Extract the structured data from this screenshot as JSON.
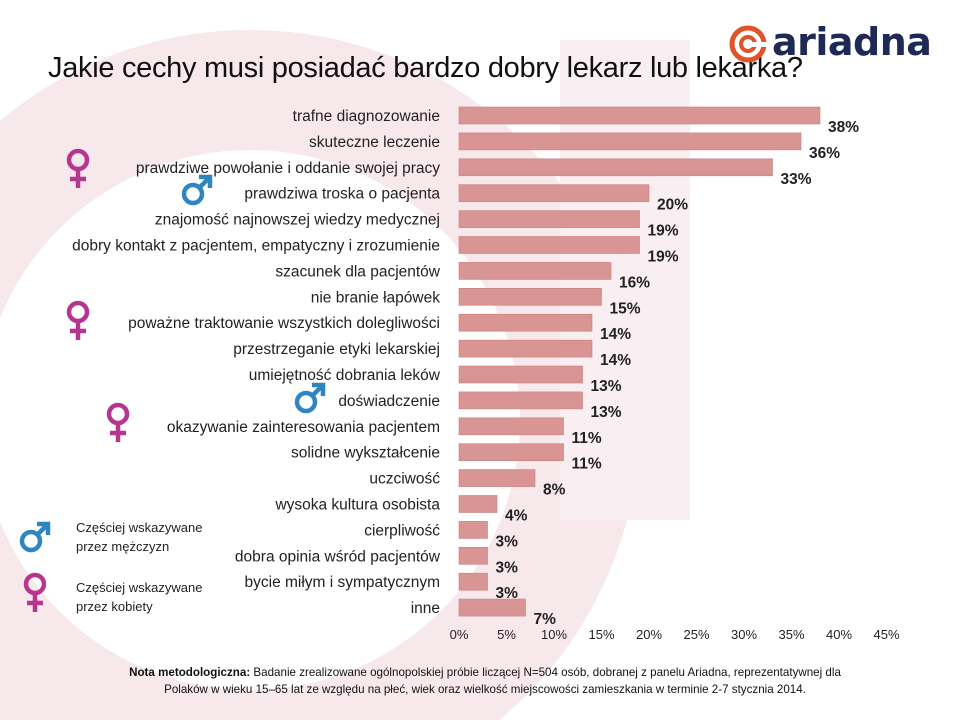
{
  "title": "Jakie cechy musi posiadać bardzo dobry lekarz lub lekarka?",
  "logo": {
    "text": "ariadna"
  },
  "colors": {
    "bar": "#d99594",
    "male_icon": "#2e86c1",
    "female_icon": "#b5358f",
    "background_deco": "#f6e9ec"
  },
  "chart_data": {
    "type": "bar",
    "orientation": "horizontal",
    "categories": [
      "trafne diagnozowanie",
      "skuteczne leczenie",
      "prawdziwe powołanie i oddanie swojej pracy",
      "prawdziwa troska o pacjenta",
      "znajomość najnowszej wiedzy medycznej",
      "dobry kontakt z pacjentem, empatyczny i zrozumienie",
      "szacunek dla pacjentów",
      "nie branie łapówek",
      "poważne traktowanie wszystkich dolegliwości",
      "przestrzeganie etyki lekarskiej",
      "umiejętność dobrania leków",
      "doświadczenie",
      "okazywanie zainteresowania pacjentem",
      "solidne wykształcenie",
      "uczciwość",
      "wysoka kultura osobista",
      "cierpliwość",
      "dobra opinia wśród pacjentów",
      "bycie miłym i sympatycznym",
      "inne"
    ],
    "values": [
      38,
      36,
      33,
      20,
      19,
      19,
      16,
      15,
      14,
      14,
      13,
      13,
      11,
      11,
      8,
      4,
      3,
      3,
      3,
      7
    ],
    "value_labels": [
      "38%",
      "36%",
      "33%",
      "20%",
      "19%",
      "19%",
      "16%",
      "15%",
      "14%",
      "14%",
      "13%",
      "13%",
      "11%",
      "11%",
      "8%",
      "4%",
      "3%",
      "3%",
      "3%",
      "7%"
    ],
    "category_markers": [
      "",
      "",
      "female",
      "male",
      "",
      "",
      "",
      "",
      "female",
      "",
      "",
      "male",
      "female",
      "",
      "",
      "",
      "",
      "",
      "",
      ""
    ],
    "xlim": [
      0,
      45
    ],
    "x_ticks": [
      "0%",
      "5%",
      "10%",
      "15%",
      "20%",
      "25%",
      "30%",
      "35%",
      "40%",
      "45%"
    ],
    "grid": false
  },
  "legend": {
    "male_text_1": "Częściej wskazywane",
    "male_text_2": "przez mężczyzn",
    "female_text_1": "Częściej wskazywane",
    "female_text_2": "przez kobiety"
  },
  "footnote": {
    "label": "Nota metodologiczna:",
    "line1": "Badanie zrealizowane ogólnopolskiej próbie liczącej N=504 osób, dobranej z panelu Ariadna, reprezentatywnej dla",
    "line2": "Polaków w wieku 15–65 lat ze względu na płeć, wiek oraz wielkość miejscowości zamieszkania w terminie 2-7 stycznia 2014."
  }
}
